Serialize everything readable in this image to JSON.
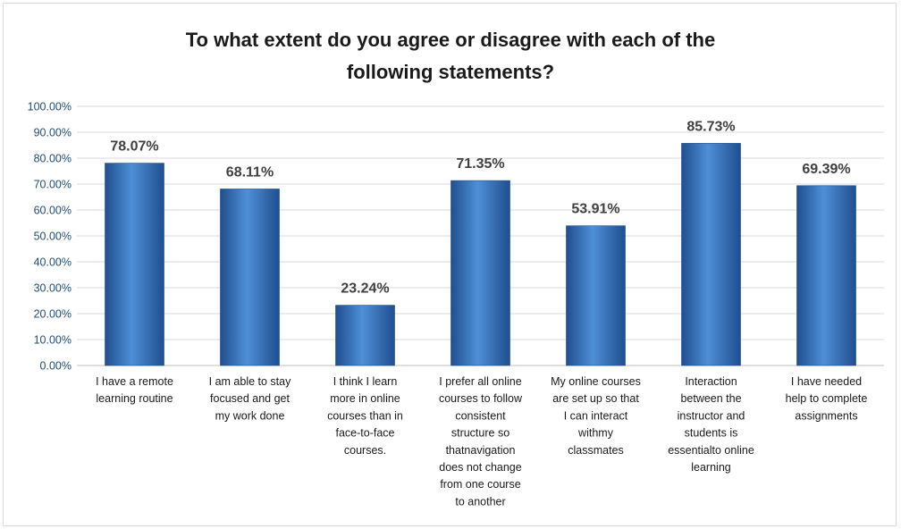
{
  "chart_data": {
    "type": "bar",
    "title_lines": [
      "To what extent do you agree or disagree with each of the",
      "following statements?"
    ],
    "xlabel": "",
    "ylabel": "",
    "ylim": [
      0,
      100
    ],
    "yticks": [
      "0.00%",
      "10.00%",
      "20.00%",
      "30.00%",
      "40.00%",
      "50.00%",
      "60.00%",
      "70.00%",
      "80.00%",
      "90.00%",
      "100.00%"
    ],
    "categories": [
      [
        "I have a remote",
        "learning routine"
      ],
      [
        "I am able to stay",
        "focused and get",
        "my work done"
      ],
      [
        "I think I learn",
        "more in online",
        "courses than in",
        "face-to-face",
        "courses."
      ],
      [
        "I prefer all online",
        "courses to follow",
        "consistent",
        "structure so",
        "thatnavigation",
        "does not change",
        "from one course",
        "to another"
      ],
      [
        "My online courses",
        "are set up so that",
        "I can interact",
        "withmy",
        "classmates"
      ],
      [
        "Interaction",
        "between the",
        "instructor and",
        "students is",
        "essentialto online",
        "learning"
      ],
      [
        "I have needed",
        "help to complete",
        "assignments"
      ]
    ],
    "values": [
      78.07,
      68.11,
      23.24,
      71.35,
      53.91,
      85.73,
      69.39
    ],
    "data_labels": [
      "78.07%",
      "68.11%",
      "23.24%",
      "71.35%",
      "53.91%",
      "85.73%",
      "69.39%"
    ],
    "bar_color": "#2e69b6",
    "bar_color_light": "#5b9bd5",
    "grid": true,
    "legend": "none"
  }
}
